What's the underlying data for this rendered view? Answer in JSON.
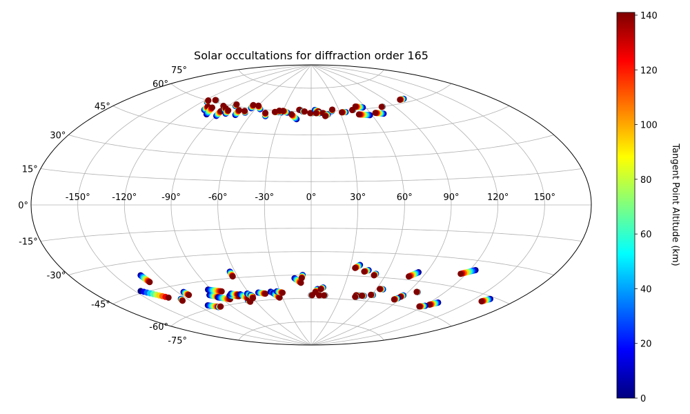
{
  "chart_data": {
    "type": "scatter",
    "projection": "aitoff",
    "title": "Solar occultations for diffraction order 165",
    "xlabel": "",
    "ylabel": "",
    "grid": true,
    "lon_ticks": [
      -150,
      -120,
      -90,
      -60,
      -30,
      0,
      30,
      60,
      90,
      120,
      150
    ],
    "lon_tick_labels": [
      "-150°",
      "-120°",
      "-90°",
      "-60°",
      "-30°",
      "0°",
      "30°",
      "60°",
      "90°",
      "120°",
      "150°"
    ],
    "lat_ticks": [
      75,
      60,
      45,
      30,
      15,
      0,
      -15,
      -30,
      -45,
      -60,
      -75
    ],
    "lat_tick_labels": [
      "75°",
      "60°",
      "45°",
      "30°",
      "15°",
      "0°",
      "-15°",
      "-30°",
      "-45°",
      "-60°",
      "-75°"
    ],
    "colorbar": {
      "label": "Tangent Point Altitude (km)",
      "range": [
        0,
        141
      ],
      "ticks": [
        0,
        20,
        40,
        60,
        80,
        100,
        120,
        140
      ],
      "tick_labels": [
        "0",
        "20",
        "40",
        "60",
        "80",
        "100",
        "120",
        "140"
      ],
      "colormap": "jet",
      "colors": [
        "#00007f",
        "#0000ff",
        "#007fff",
        "#00ffff",
        "#7fff7f",
        "#ffff00",
        "#ff7f00",
        "#ff0000",
        "#7f0000"
      ]
    },
    "tracks_note": "Each track is a sequence of occultation points from altitude 0 km (start) to 140 km (end); coordinates are longitude/latitude in degrees.",
    "tracks": [
      {
        "start": [
          -115,
          59
        ],
        "end": [
          -117,
          60
        ]
      },
      {
        "start": [
          -110,
          61
        ],
        "end": [
          -111,
          61
        ]
      },
      {
        "start": [
          -107,
          55
        ],
        "end": [
          -108,
          57
        ]
      },
      {
        "start": [
          -100,
          53
        ],
        "end": [
          -103,
          57
        ]
      },
      {
        "start": [
          -92,
          58
        ],
        "end": [
          -95,
          59
        ]
      },
      {
        "start": [
          -90,
          53
        ],
        "end": [
          -91,
          56
        ]
      },
      {
        "start": [
          -89,
          57
        ],
        "end": [
          -90,
          58
        ]
      },
      {
        "start": [
          -84,
          55
        ],
        "end": [
          -85,
          57
        ]
      },
      {
        "start": [
          -83,
          60
        ],
        "end": [
          -84,
          61
        ]
      },
      {
        "start": [
          -74,
          55
        ],
        "end": [
          -75,
          58
        ]
      },
      {
        "start": [
          -67,
          57
        ],
        "end": [
          -69,
          58
        ]
      },
      {
        "start": [
          -65,
          60
        ],
        "end": [
          -66,
          62
        ]
      },
      {
        "start": [
          -55,
          60
        ],
        "end": [
          -60,
          62
        ]
      },
      {
        "start": [
          -45,
          56
        ],
        "end": [
          -47,
          58
        ]
      },
      {
        "start": [
          -35,
          59
        ],
        "end": [
          -38,
          59
        ]
      },
      {
        "start": [
          -31,
          59
        ],
        "end": [
          -34,
          60
        ]
      },
      {
        "start": [
          -25,
          59
        ],
        "end": [
          -30,
          60
        ]
      },
      {
        "start": [
          -14,
          55
        ],
        "end": [
          -20,
          58
        ]
      },
      {
        "start": [
          -12,
          61
        ],
        "end": [
          -13,
          61
        ]
      },
      {
        "start": [
          -9,
          60
        ],
        "end": [
          -7,
          60
        ]
      },
      {
        "start": [
          1,
          59
        ],
        "end": [
          -1,
          59
        ]
      },
      {
        "start": [
          4,
          61
        ],
        "end": [
          8,
          60
        ]
      },
      {
        "start": [
          9,
          59
        ],
        "end": [
          5,
          59
        ]
      },
      {
        "start": [
          16,
          58
        ],
        "end": [
          12,
          59
        ]
      },
      {
        "start": [
          17,
          58
        ],
        "end": [
          14,
          57
        ]
      },
      {
        "start": [
          22,
          60
        ],
        "end": [
          23,
          61
        ]
      },
      {
        "start": [
          36,
          59
        ],
        "end": [
          32,
          59
        ]
      },
      {
        "start": [
          45,
          60
        ],
        "end": [
          44,
          60
        ]
      },
      {
        "start": [
          58,
          56
        ],
        "end": [
          48,
          57
        ]
      },
      {
        "start": [
          57,
          61
        ],
        "end": [
          50,
          62
        ]
      },
      {
        "start": [
          72,
          56
        ],
        "end": [
          65,
          57
        ]
      },
      {
        "start": [
          78,
          60
        ],
        "end": [
          77,
          60
        ]
      },
      {
        "start": [
          110,
          62
        ],
        "end": [
          105,
          62
        ]
      },
      {
        "start": [
          -132,
          -37
        ],
        "end": [
          -131,
          -41
        ]
      },
      {
        "start": [
          -125,
          -52
        ],
        "end": [
          -126,
          -53
        ]
      },
      {
        "start": [
          -115,
          -49
        ],
        "end": [
          -114,
          -51
        ]
      },
      {
        "start": [
          -146,
          -44
        ],
        "end": [
          -133,
          -50
        ]
      },
      {
        "start": [
          -111,
          -58
        ],
        "end": [
          -103,
          -60
        ]
      },
      {
        "start": [
          -104,
          -60
        ],
        "end": [
          -101,
          -60
        ]
      },
      {
        "start": [
          -97,
          -53
        ],
        "end": [
          -91,
          -55
        ]
      },
      {
        "start": [
          -93,
          -50
        ],
        "end": [
          -83,
          -52
        ]
      },
      {
        "start": [
          -92,
          -55
        ],
        "end": [
          -83,
          -57
        ]
      },
      {
        "start": [
          -80,
          -55
        ],
        "end": [
          -72,
          -56
        ]
      },
      {
        "start": [
          -77,
          -54
        ],
        "end": [
          -71,
          -55
        ]
      },
      {
        "start": [
          -67,
          -59
        ],
        "end": [
          -66,
          -60
        ]
      },
      {
        "start": [
          -69,
          -55
        ],
        "end": [
          -65,
          -58
        ]
      },
      {
        "start": [
          -64,
          -41
        ],
        "end": [
          -64,
          -44
        ]
      },
      {
        "start": [
          -62,
          -55
        ],
        "end": [
          -59,
          -57
        ]
      },
      {
        "start": [
          -60,
          -56
        ],
        "end": [
          -60,
          -58
        ]
      },
      {
        "start": [
          -51,
          -55
        ],
        "end": [
          -45,
          -56
        ]
      },
      {
        "start": [
          -39,
          -55
        ],
        "end": [
          -33,
          -58
        ]
      },
      {
        "start": [
          -37,
          -56
        ],
        "end": [
          -33,
          -59
        ]
      },
      {
        "start": [
          -33,
          -55
        ],
        "end": [
          -28,
          -56
        ]
      },
      {
        "start": [
          -14,
          -47
        ],
        "end": [
          -9,
          -50
        ]
      },
      {
        "start": [
          -7,
          -45
        ],
        "end": [
          -8,
          -47
        ]
      },
      {
        "start": [
          0,
          -58
        ],
        "end": [
          1,
          -58
        ]
      },
      {
        "start": [
          6,
          -54
        ],
        "end": [
          4,
          -56
        ]
      },
      {
        "start": [
          11,
          -53
        ],
        "end": [
          9,
          -54
        ]
      },
      {
        "start": [
          9,
          -58
        ],
        "end": [
          8,
          -58
        ]
      },
      {
        "start": [
          14,
          -58
        ],
        "end": [
          13,
          -58
        ]
      },
      {
        "start": [
          37,
          -38
        ],
        "end": [
          34,
          -40
        ]
      },
      {
        "start": [
          45,
          -41
        ],
        "end": [
          42,
          -42
        ]
      },
      {
        "start": [
          52,
          -43
        ],
        "end": [
          51,
          -44
        ]
      },
      {
        "start": [
          48,
          -57
        ],
        "end": [
          45,
          -57
        ]
      },
      {
        "start": [
          46,
          -58
        ],
        "end": [
          45,
          -58
        ]
      },
      {
        "start": [
          53,
          -57
        ],
        "end": [
          51,
          -57
        ]
      },
      {
        "start": [
          61,
          -56
        ],
        "end": [
          59,
          -56
        ]
      },
      {
        "start": [
          66,
          -52
        ],
        "end": [
          63,
          -52
        ]
      },
      {
        "start": [
          84,
          -40
        ],
        "end": [
          79,
          -43
        ]
      },
      {
        "start": [
          89,
          -54
        ],
        "end": [
          88,
          -55
        ]
      },
      {
        "start": [
          87,
          -56
        ],
        "end": [
          85,
          -57
        ]
      },
      {
        "start": [
          98,
          -51
        ],
        "end": [
          97,
          -51
        ]
      },
      {
        "start": [
          124,
          -35
        ],
        "end": [
          116,
          -38
        ]
      },
      {
        "start": [
          127,
          -54
        ],
        "end": [
          123,
          -56
        ]
      },
      {
        "start": [
          121,
          -57
        ],
        "end": [
          117,
          -58
        ]
      },
      {
        "start": [
          161,
          -46
        ],
        "end": [
          158,
          -48
        ]
      }
    ]
  }
}
